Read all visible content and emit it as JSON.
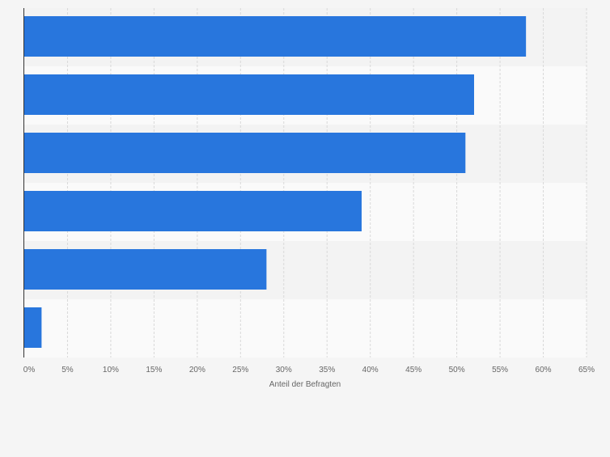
{
  "chart_data": {
    "type": "bar",
    "orientation": "horizontal",
    "categories": [
      "",
      "",
      "",
      "",
      "",
      ""
    ],
    "values": [
      58,
      52,
      51,
      39,
      28,
      2
    ],
    "unit": "%",
    "title": "",
    "xlabel": "Anteil der Befragten",
    "ylabel": "",
    "xlim": [
      0,
      65
    ],
    "ticks": [
      "0%",
      "5%",
      "10%",
      "15%",
      "20%",
      "25%",
      "30%",
      "35%",
      "40%",
      "45%",
      "50%",
      "55%",
      "60%",
      "65%"
    ],
    "grid": true,
    "legend": "none",
    "colors": {
      "bar": "#2876dd",
      "band_light": "#fafafa",
      "band_dark": "#f3f3f3",
      "grid": "#d9d9d9",
      "axis": "#333333",
      "tick_text": "#666666"
    }
  }
}
